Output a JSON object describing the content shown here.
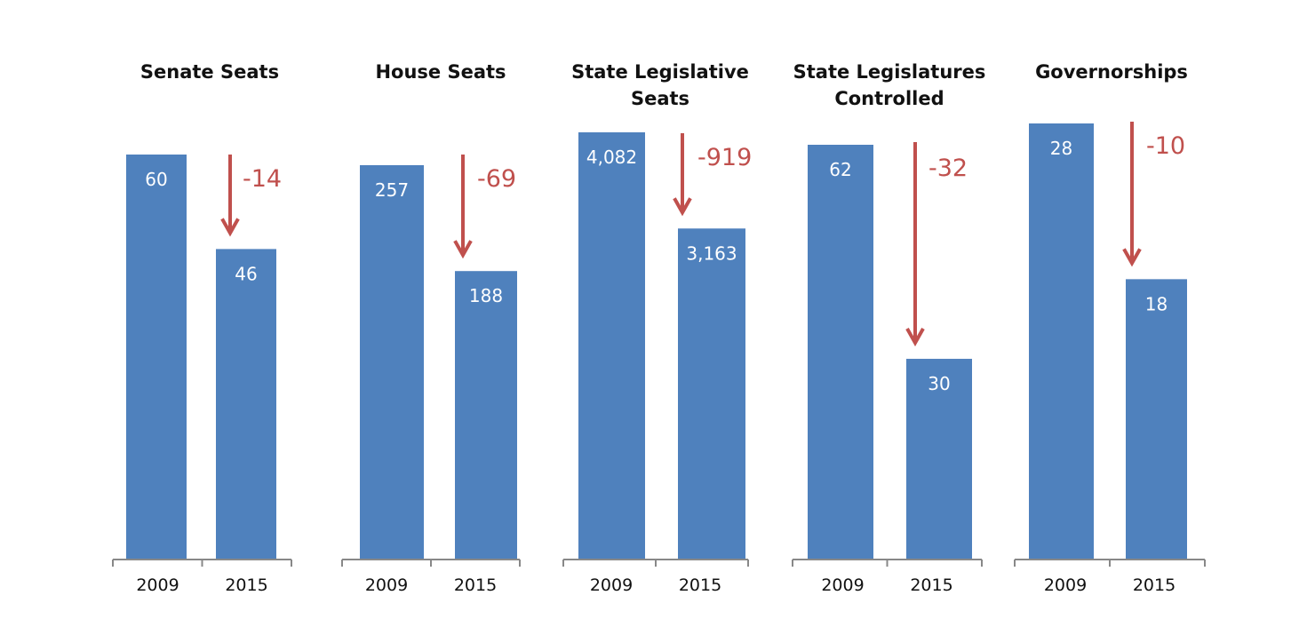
{
  "chart_data": [
    {
      "type": "bar",
      "title_lines": [
        "Senate Seats"
      ],
      "categories": [
        "2009",
        "2015"
      ],
      "values": [
        60,
        46
      ],
      "change_label": "-14"
    },
    {
      "type": "bar",
      "title_lines": [
        "House Seats"
      ],
      "categories": [
        "2009",
        "2015"
      ],
      "values": [
        257,
        188
      ],
      "change_label": "-69"
    },
    {
      "type": "bar",
      "title_lines": [
        "State Legislative",
        "Seats"
      ],
      "categories": [
        "2009",
        "2015"
      ],
      "values": [
        4082,
        3163
      ],
      "value_labels": [
        "4,082",
        "3,163"
      ],
      "change_label": "-919"
    },
    {
      "type": "bar",
      "title_lines": [
        "State Legislatures",
        "Controlled"
      ],
      "categories": [
        "2009",
        "2015"
      ],
      "values": [
        62,
        30
      ],
      "change_label": "-32"
    },
    {
      "type": "bar",
      "title_lines": [
        "Governorships"
      ],
      "categories": [
        "2009",
        "2015"
      ],
      "values": [
        28,
        18
      ],
      "change_label": "-10"
    }
  ],
  "colors": {
    "bar": "#4F81BD",
    "change_arrow": "#C0504D",
    "axis": "#888888"
  }
}
